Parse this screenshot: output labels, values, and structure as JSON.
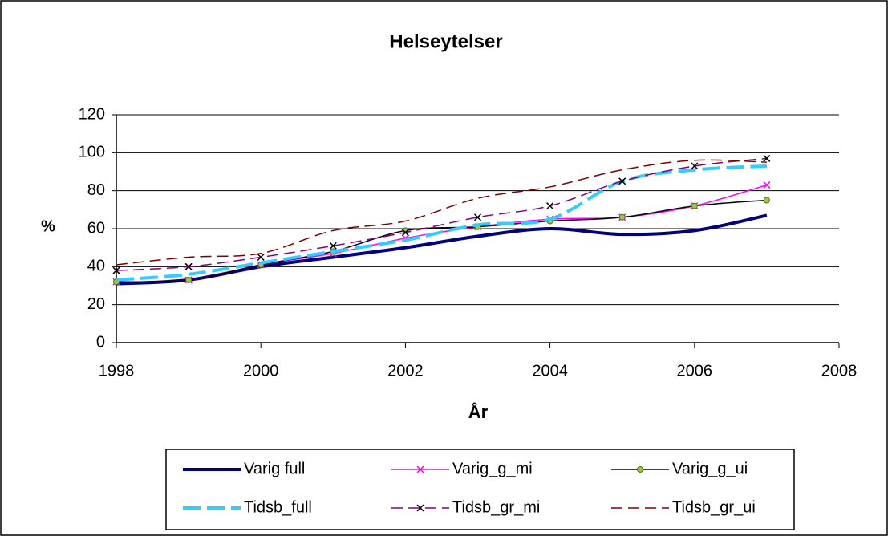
{
  "chart_data": {
    "type": "line",
    "title": "Helseytelser",
    "x_label": "År",
    "y_label": "%",
    "x": [
      1998,
      1999,
      2000,
      2001,
      2002,
      2003,
      2004,
      2005,
      2006,
      2007
    ],
    "xlim": [
      1998,
      2008
    ],
    "xticks": [
      1998,
      2000,
      2002,
      2004,
      2006,
      2008
    ],
    "ylim": [
      0,
      120
    ],
    "yticks": [
      0,
      20,
      40,
      60,
      80,
      100,
      120
    ],
    "grid": true,
    "smooth": true,
    "legend": "bottom",
    "series": [
      {
        "name": "Varig full",
        "color": "#000080",
        "width": 4,
        "dash": "solid",
        "marker": "none",
        "values": [
          31,
          33,
          40,
          45,
          50,
          56,
          60,
          57,
          59,
          67
        ]
      },
      {
        "name": "Varig_g_mi",
        "color": "#ff00ff",
        "width": 1.5,
        "dash": "solid",
        "marker": "x",
        "marker_color": "#ff00ff",
        "values": [
          32,
          33,
          41,
          47,
          55,
          61,
          65,
          66,
          72,
          83
        ]
      },
      {
        "name": "Varig_g_ui",
        "color": "#000000",
        "width": 1.5,
        "dash": "solid",
        "marker": "dot",
        "marker_color": "#9acd32",
        "values": [
          32,
          33,
          41,
          48,
          59,
          61,
          64,
          66,
          72,
          75
        ]
      },
      {
        "name": "Tidsb_full",
        "color": "#33ccff",
        "width": 4,
        "dash": "dashed",
        "marker": "none",
        "values": [
          33,
          36,
          42,
          48,
          54,
          62,
          65,
          85,
          91,
          93
        ]
      },
      {
        "name": "Tidsb_gr_mi",
        "color": "#800080",
        "width": 1.5,
        "dash": "dashed",
        "marker": "x",
        "marker_color": "#000000",
        "values": [
          38,
          40,
          45,
          51,
          58,
          66,
          72,
          85,
          93,
          97
        ]
      },
      {
        "name": "Tidsb_gr_ui",
        "color": "#800000",
        "width": 1.5,
        "dash": "dashed",
        "marker": "none",
        "values": [
          41,
          45,
          47,
          59,
          64,
          76,
          82,
          91,
          96,
          95
        ]
      }
    ]
  }
}
